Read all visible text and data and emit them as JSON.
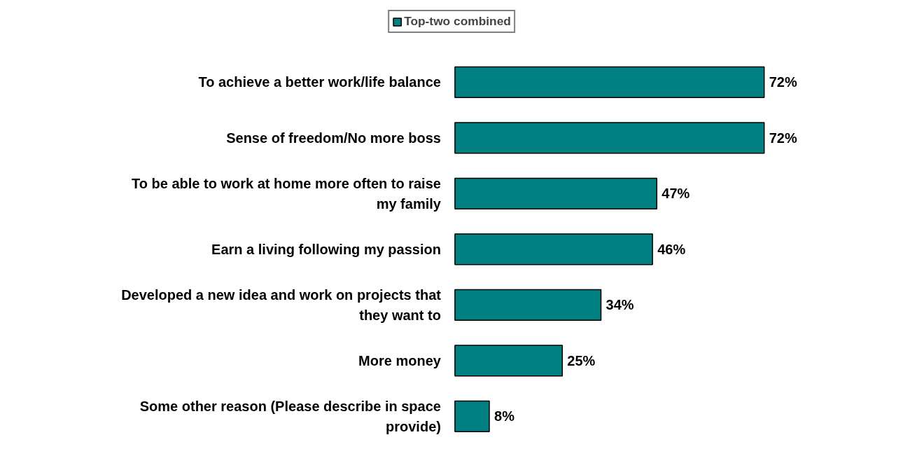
{
  "chart_data": {
    "type": "bar",
    "orientation": "horizontal",
    "categories": [
      "To achieve a better work/life balance",
      "Sense of freedom/No more boss",
      "To be able to work at home more often to raise my family",
      "Earn a living following my passion",
      "Developed a new idea and work on projects that they want to",
      "More money",
      "Some other reason (Please describe in space provide)"
    ],
    "series": [
      {
        "name": "Top-two combined",
        "color": "#008080",
        "values": [
          72,
          72,
          47,
          46,
          34,
          25,
          8
        ],
        "value_labels": [
          "72%",
          "72%",
          "47%",
          "46%",
          "34%",
          "25%",
          "8%"
        ]
      }
    ],
    "legend": "top",
    "grid": false
  }
}
